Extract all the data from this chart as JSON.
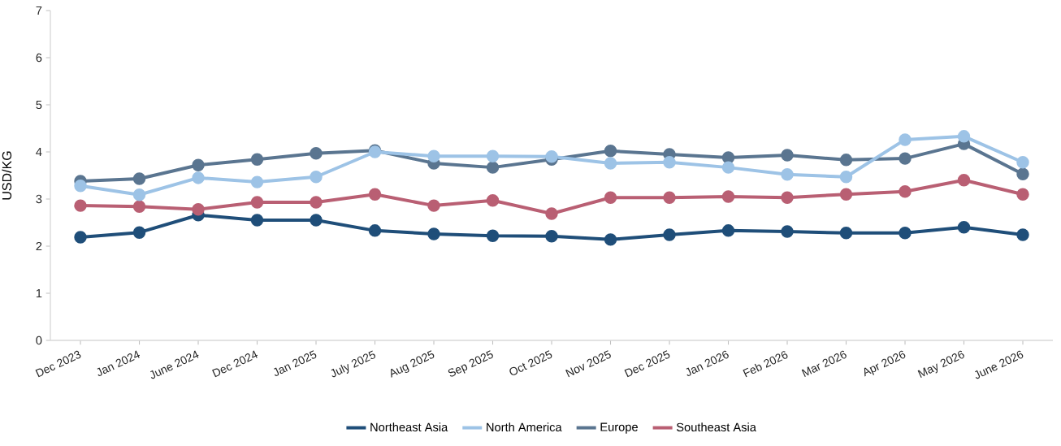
{
  "chart_data": {
    "type": "line",
    "ylabel": "USD/KG",
    "categories": [
      "Dec 2023",
      "Jan 2024",
      "June 2024",
      "Dec 2024",
      "Jan 2025",
      "July 2025",
      "Aug 2025",
      "Sep 2025",
      "Oct 2025",
      "Nov 2025",
      "Dec 2025",
      "Jan 2026",
      "Feb 2026",
      "Mar 2026",
      "Apr 2026",
      "May 2026",
      "June 2026"
    ],
    "series": [
      {
        "name": "Northeast Asia",
        "color": "#1f4e79",
        "values": [
          2.19,
          2.29,
          2.66,
          2.55,
          2.55,
          2.33,
          2.26,
          2.22,
          2.21,
          2.14,
          2.24,
          2.33,
          2.31,
          2.28,
          2.28,
          2.4,
          2.24
        ]
      },
      {
        "name": "North America",
        "color": "#9dc3e6",
        "values": [
          3.28,
          3.09,
          3.45,
          3.36,
          3.47,
          4.0,
          3.91,
          3.91,
          3.9,
          3.76,
          3.78,
          3.67,
          3.52,
          3.47,
          4.26,
          4.33,
          3.78
        ]
      },
      {
        "name": "Europe",
        "color": "#5a7590",
        "values": [
          3.38,
          3.43,
          3.72,
          3.84,
          3.97,
          4.03,
          3.76,
          3.67,
          3.84,
          4.02,
          3.95,
          3.88,
          3.93,
          3.83,
          3.86,
          4.17,
          3.53
        ]
      },
      {
        "name": "Southeast Asia",
        "color": "#b95f73",
        "values": [
          2.86,
          2.84,
          2.78,
          2.93,
          2.93,
          3.1,
          2.86,
          2.97,
          2.69,
          3.03,
          3.03,
          3.05,
          3.03,
          3.1,
          3.16,
          3.4,
          3.1
        ]
      }
    ],
    "ylim": [
      0,
      7
    ],
    "yticks": [
      0,
      1,
      2,
      3,
      4,
      5,
      6,
      7
    ],
    "grid": false,
    "legend": "bottom",
    "marker": "circle",
    "line_style": "solid"
  }
}
